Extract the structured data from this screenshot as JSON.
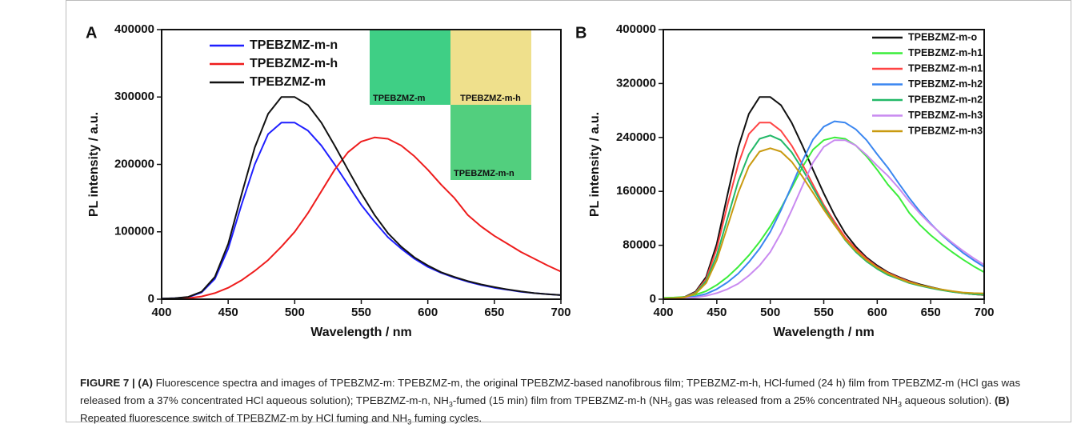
{
  "chart_data": [
    {
      "type": "line",
      "panel": "A",
      "xlabel": "Wavelength / nm",
      "ylabel": "PL intensity / a.u.",
      "legend": "upper left",
      "xlim": [
        400,
        700
      ],
      "xticks": [
        400,
        450,
        500,
        550,
        600,
        650,
        700
      ],
      "ylim": [
        0,
        400000
      ],
      "yticks": [
        0,
        100000,
        200000,
        300000,
        400000
      ],
      "x": [
        400,
        410,
        420,
        430,
        440,
        450,
        460,
        470,
        480,
        490,
        500,
        510,
        520,
        530,
        540,
        550,
        560,
        570,
        580,
        590,
        600,
        610,
        620,
        630,
        640,
        650,
        660,
        670,
        680,
        690,
        700
      ],
      "series": [
        {
          "name": "TPEBZMZ-m-n",
          "color": "#1f1fff",
          "values": [
            1000,
            1500,
            3000,
            10000,
            30000,
            75000,
            140000,
            200000,
            245000,
            262000,
            262000,
            250000,
            228000,
            200000,
            170000,
            140000,
            115000,
            92000,
            75000,
            60000,
            48000,
            39000,
            32000,
            26000,
            21000,
            17000,
            14000,
            11000,
            9000,
            7500,
            6000
          ]
        },
        {
          "name": "TPEBZMZ-m-h",
          "color": "#ee1c1c",
          "values": [
            0,
            500,
            1500,
            4000,
            9000,
            17000,
            28000,
            42000,
            58000,
            78000,
            100000,
            128000,
            160000,
            192000,
            218000,
            234000,
            240000,
            238000,
            228000,
            212000,
            192000,
            170000,
            150000,
            125000,
            108000,
            94000,
            82000,
            70000,
            60000,
            50000,
            41000
          ]
        },
        {
          "name": "TPEBZMZ-m",
          "color": "#111111",
          "values": [
            1000,
            1500,
            3500,
            11000,
            33000,
            82000,
            155000,
            225000,
            275000,
            300000,
            300000,
            288000,
            262000,
            228000,
            192000,
            157000,
            125000,
            98000,
            78000,
            62000,
            50000,
            40000,
            33000,
            27000,
            22000,
            18000,
            14500,
            11500,
            9000,
            7500,
            6000
          ]
        }
      ],
      "insets": [
        {
          "label": "TPEBZMZ-m",
          "color": "#3fcf85"
        },
        {
          "label": "TPEBZMZ-m-h",
          "color": "#efe08c"
        },
        {
          "label": "TPEBZMZ-m-n",
          "color": "#52cf7e"
        }
      ]
    },
    {
      "type": "line",
      "panel": "B",
      "xlabel": "Wavelength / nm",
      "ylabel": "PL intensity / a.u.",
      "legend": "upper right",
      "xlim": [
        400,
        700
      ],
      "xticks": [
        400,
        450,
        500,
        550,
        600,
        650,
        700
      ],
      "ylim": [
        0,
        400000
      ],
      "yticks": [
        0,
        80000,
        160000,
        240000,
        320000,
        400000
      ],
      "x": [
        400,
        410,
        420,
        430,
        440,
        450,
        460,
        470,
        480,
        490,
        500,
        510,
        520,
        530,
        540,
        550,
        560,
        570,
        580,
        590,
        600,
        610,
        620,
        630,
        640,
        650,
        660,
        670,
        680,
        690,
        700
      ],
      "series": [
        {
          "name": "TPEBZMZ-m-o",
          "color": "#111111",
          "values": [
            1000,
            1500,
            3500,
            11000,
            33000,
            82000,
            155000,
            225000,
            275000,
            300000,
            300000,
            288000,
            262000,
            228000,
            192000,
            157000,
            125000,
            98000,
            78000,
            62000,
            50000,
            40000,
            33000,
            27000,
            22000,
            18000,
            14500,
            11500,
            9000,
            7500,
            6000
          ]
        },
        {
          "name": "TPEBZMZ-m-h1",
          "color": "#3bed3b",
          "values": [
            2000,
            2500,
            3500,
            6500,
            12000,
            21000,
            33000,
            48000,
            65000,
            85000,
            108000,
            135000,
            165000,
            196000,
            222000,
            236000,
            240000,
            238000,
            228000,
            212000,
            192000,
            170000,
            152000,
            128000,
            110000,
            95000,
            82000,
            70000,
            59000,
            49000,
            40000
          ]
        },
        {
          "name": "TPEBZMZ-m-n1",
          "color": "#ff4444",
          "values": [
            1000,
            1500,
            3000,
            10000,
            30000,
            75000,
            140000,
            200000,
            245000,
            262000,
            262000,
            250000,
            228000,
            200000,
            170000,
            140000,
            115000,
            92000,
            75000,
            60000,
            48000,
            39000,
            32000,
            26000,
            21000,
            17000,
            14000,
            11000,
            9000,
            7500,
            6000
          ]
        },
        {
          "name": "TPEBZMZ-m-h2",
          "color": "#3a86f0",
          "values": [
            1000,
            1200,
            2000,
            4000,
            8000,
            15000,
            25000,
            38000,
            55000,
            75000,
            100000,
            132000,
            168000,
            205000,
            237000,
            256000,
            264000,
            262000,
            252000,
            236000,
            215000,
            195000,
            172000,
            150000,
            130000,
            112000,
            96000,
            82000,
            69000,
            58000,
            48000
          ]
        },
        {
          "name": "TPEBZMZ-m-n2",
          "color": "#22b868",
          "values": [
            1000,
            1500,
            3000,
            9000,
            27000,
            65000,
            120000,
            175000,
            215000,
            238000,
            243000,
            236000,
            218000,
            193000,
            165000,
            137000,
            111000,
            88000,
            70000,
            56000,
            45000,
            36000,
            30000,
            24000,
            20000,
            16500,
            13500,
            11000,
            9000,
            7500,
            6500
          ]
        },
        {
          "name": "TPEBZMZ-m-h3",
          "color": "#c98af0",
          "values": [
            1000,
            1200,
            1500,
            2500,
            5000,
            9000,
            15000,
            23000,
            35000,
            50000,
            70000,
            98000,
            132000,
            168000,
            203000,
            226000,
            236000,
            236000,
            228000,
            214000,
            198000,
            183000,
            165000,
            145000,
            127000,
            111000,
            97000,
            84000,
            72000,
            61000,
            51000
          ]
        },
        {
          "name": "TPEBZMZ-m-n3",
          "color": "#c99a10",
          "values": [
            1000,
            1500,
            2800,
            8000,
            24000,
            58000,
            108000,
            158000,
            197000,
            219000,
            224000,
            219000,
            204000,
            182000,
            158000,
            133000,
            110000,
            89000,
            72000,
            58000,
            47000,
            38000,
            31000,
            25000,
            21000,
            17500,
            14500,
            12000,
            10000,
            9000,
            8500
          ]
        }
      ]
    }
  ],
  "caption": {
    "runs": [
      {
        "text": "FIGURE 7 | (A)",
        "bold": true
      },
      {
        "text": " Fluorescence spectra and images of TPEBZMZ-m: TPEBZMZ-m, the original TPEBZMZ-based nanofibrous film; TPEBZMZ-m-h, HCl-fumed (24 h) film from TPEBZMZ-m (HCl gas was released from a 37% concentrated HCl aqueous solution); TPEBZMZ-m-n, NH"
      },
      {
        "text": "3",
        "sub": true
      },
      {
        "text": "-fumed (15 min) film from TPEBZMZ-m-h (NH"
      },
      {
        "text": "3",
        "sub": true
      },
      {
        "text": " gas was released from a 25% concentrated NH"
      },
      {
        "text": "3",
        "sub": true
      },
      {
        "text": " aqueous solution). "
      },
      {
        "text": "(B)",
        "bold": true
      },
      {
        "text": " Repeated fluorescence switch of TPEBZMZ-m by HCl fuming and NH"
      },
      {
        "text": "3",
        "sub": true
      },
      {
        "text": " fuming cycles."
      }
    ]
  }
}
